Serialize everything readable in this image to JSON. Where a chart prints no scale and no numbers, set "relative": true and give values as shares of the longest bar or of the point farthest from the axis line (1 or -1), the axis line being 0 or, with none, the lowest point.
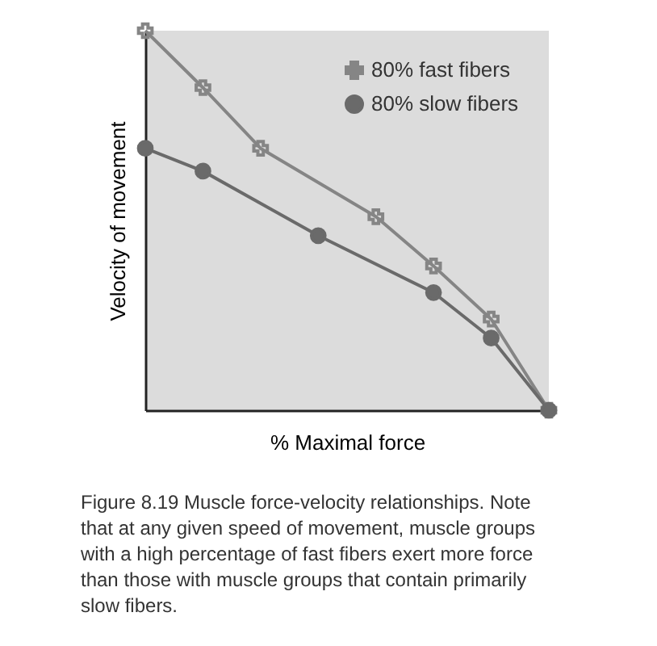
{
  "chart_data": {
    "type": "line",
    "relative": true,
    "xlabel": "% Maximal force",
    "ylabel": "Velocity of movement",
    "categories": [
      null,
      null,
      null,
      null,
      null,
      null,
      null,
      null
    ],
    "legend": "top right",
    "line_style": "solid",
    "series": [
      {
        "name": "80% fast fibers",
        "color": "#858585",
        "marker": "cross",
        "values": [
          1,
          0.85,
          0.69,
          null,
          0.51,
          0.38,
          0.24,
          0
        ]
      },
      {
        "name": "80% slow fibers",
        "color": "#6a6a6a",
        "marker": "circle",
        "values": [
          0.69,
          0.63,
          null,
          0.46,
          null,
          0.31,
          0.19,
          0
        ]
      }
    ],
    "annotations": [
      "Figure 8.19  Muscle force-velocity relationships. Note that at any given speed of movement, muscle groups with a high percentage of fast fibers exert more force than those with muscle groups that contain primarily slow fibers."
    ]
  }
}
